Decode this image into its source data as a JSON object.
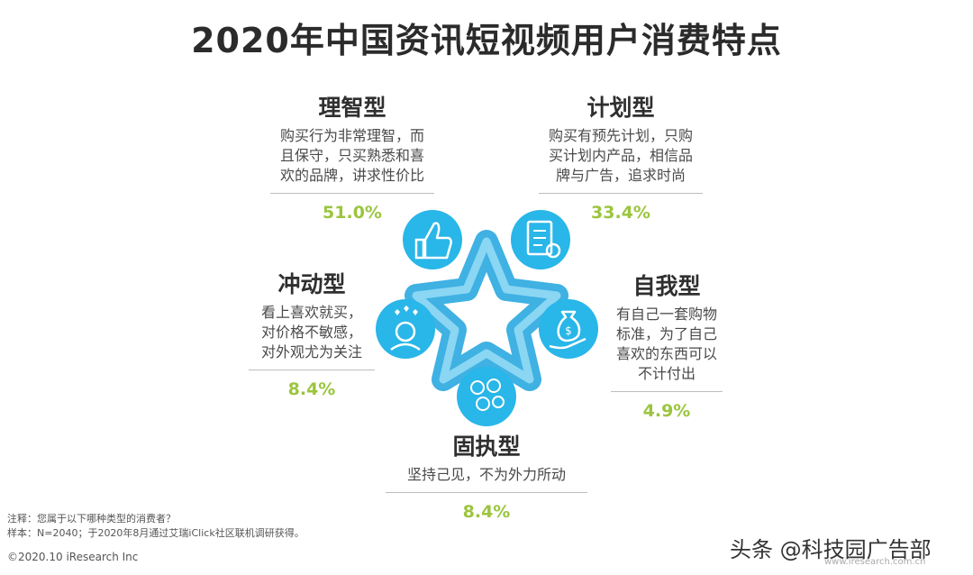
{
  "title": "2020年中国资讯短视频用户消费特点",
  "chart_data": {
    "type": "diagram",
    "segments": [
      {
        "key": "rational",
        "name": "理智型",
        "desc": [
          "购买行为非常理智，而",
          "且保守，只买熟悉和喜",
          "欢的品牌，讲求性价比"
        ],
        "value": 51.0,
        "label": "51.0%",
        "icon": "thumbs-up-icon"
      },
      {
        "key": "planned",
        "name": "计划型",
        "desc": [
          "购买有预先计划，只购",
          "买计划内产品，相信品",
          "牌与广告，追求时尚"
        ],
        "value": 33.4,
        "label": "33.4%",
        "icon": "clipboard-checklist-icon"
      },
      {
        "key": "impulse",
        "name": "冲动型",
        "desc": [
          "看上喜欢就买，",
          "对价格不敏感，",
          "对外观尤为关注"
        ],
        "value": 8.4,
        "label": "8.4%",
        "icon": "hearts-person-icon"
      },
      {
        "key": "self",
        "name": "自我型",
        "desc": [
          "有自己一套购物",
          "标准，为了自己",
          "喜欢的东西可以",
          "不计付出"
        ],
        "value": 4.9,
        "label": "4.9%",
        "icon": "money-bag-hand-icon"
      },
      {
        "key": "stubborn",
        "name": "固执型",
        "desc": [
          "坚持己见，不为外力所动"
        ],
        "value": 8.4,
        "label": "8.4%",
        "icon": "faces-head-icon"
      }
    ]
  },
  "footnote": [
    "注释：您属于以下哪种类型的消费者？",
    "样本：N=2040；于2020年8月通过艾瑞iClick社区联机调研获得。"
  ],
  "copyright": "©2020.10 iResearch Inc",
  "watermark": "头条 @科技园广告部",
  "site": "www.iresearch.com.cn",
  "colors": {
    "accent": "#29b6e8",
    "pct": "#9bc53d",
    "dark_blue": "#1f8fcf"
  }
}
